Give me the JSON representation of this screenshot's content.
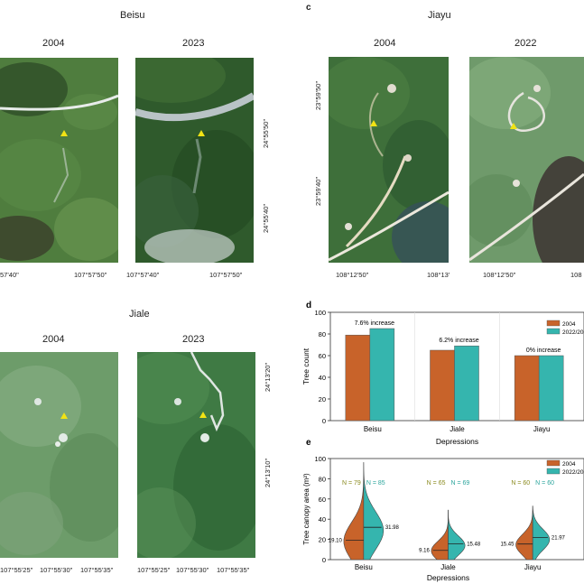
{
  "beisu": {
    "title": "Beisu",
    "year_left": "2004",
    "year_right": "2023",
    "x_left_a": "57'40\"",
    "x_left_b": "107°57'50\"",
    "x_right_a": "107°57'40\"",
    "x_right_b": "107°57'50\"",
    "y_top": "24°55'50\"",
    "y_bottom": "24°55'40\""
  },
  "jiale": {
    "title": "Jiale",
    "year_left": "2004",
    "year_right": "2023",
    "x_left_a": "107°55'25\"",
    "x_left_b": "107°55'30\"",
    "x_left_c": "107°55'35\"",
    "x_right_a": "107°55'25\"",
    "x_right_b": "107°55'30\"",
    "x_right_c": "107°55'35\"",
    "y_top": "24°13'20\"",
    "y_bottom": "24°13'10\""
  },
  "jiayu": {
    "letter": "c",
    "title": "Jiayu",
    "year_left": "2004",
    "year_right": "2022",
    "y_top": "23°59'50\"",
    "y_bottom": "23°59'40\"",
    "x_left_a": "108°12'50\"",
    "x_left_b": "108°13'",
    "x_right_a": "108°12'50\"",
    "x_right_b": "108"
  },
  "colors": {
    "series_2004": "#c8632a",
    "series_recent": "#35b5ae",
    "marker": "#f2e314"
  },
  "chart_data": [
    {
      "panel": "d",
      "type": "bar",
      "title": "",
      "xlabel": "Depressions",
      "ylabel": "Tree count",
      "ylim": [
        0,
        100
      ],
      "yticks": [
        "0",
        "20",
        "40",
        "60",
        "80",
        "100"
      ],
      "categories": [
        "Beisu",
        "Jiale",
        "Jiayu"
      ],
      "series": [
        {
          "name": "2004",
          "values": [
            79,
            65,
            60
          ]
        },
        {
          "name": "2022/2023",
          "values": [
            85,
            69,
            60
          ]
        }
      ],
      "annotations": [
        "7.6% increase",
        "6.2% increase",
        "0% increase"
      ],
      "legend": "top-right",
      "legend_labels": [
        "2004",
        "2022/2023"
      ]
    },
    {
      "panel": "e",
      "type": "violin",
      "title": "",
      "xlabel": "Depressions",
      "ylabel": "Tree canopy area (m²)",
      "ylim": [
        0,
        100
      ],
      "yticks": [
        "0",
        "20",
        "40",
        "60",
        "80",
        "100"
      ],
      "categories": [
        "Beisu",
        "Jiale",
        "Jiayu"
      ],
      "series": [
        {
          "name": "2004",
          "n": [
            "N = 79",
            "N = 65",
            "N = 60"
          ],
          "medians": [
            19.1,
            9.16,
            15.45
          ],
          "median_labels": [
            "19.10",
            "9.16",
            "15.45"
          ],
          "max": [
            96,
            49,
            53
          ]
        },
        {
          "name": "2022/2023",
          "n": [
            "N = 85",
            "N = 69",
            "N = 60"
          ],
          "medians": [
            31.98,
            15.48,
            21.97
          ],
          "median_labels": [
            "31.98",
            "15.48",
            "21.97"
          ],
          "max": [
            96,
            49,
            53
          ]
        }
      ],
      "legend": "top-right",
      "legend_labels": [
        "2004",
        "2022/2023"
      ]
    }
  ]
}
